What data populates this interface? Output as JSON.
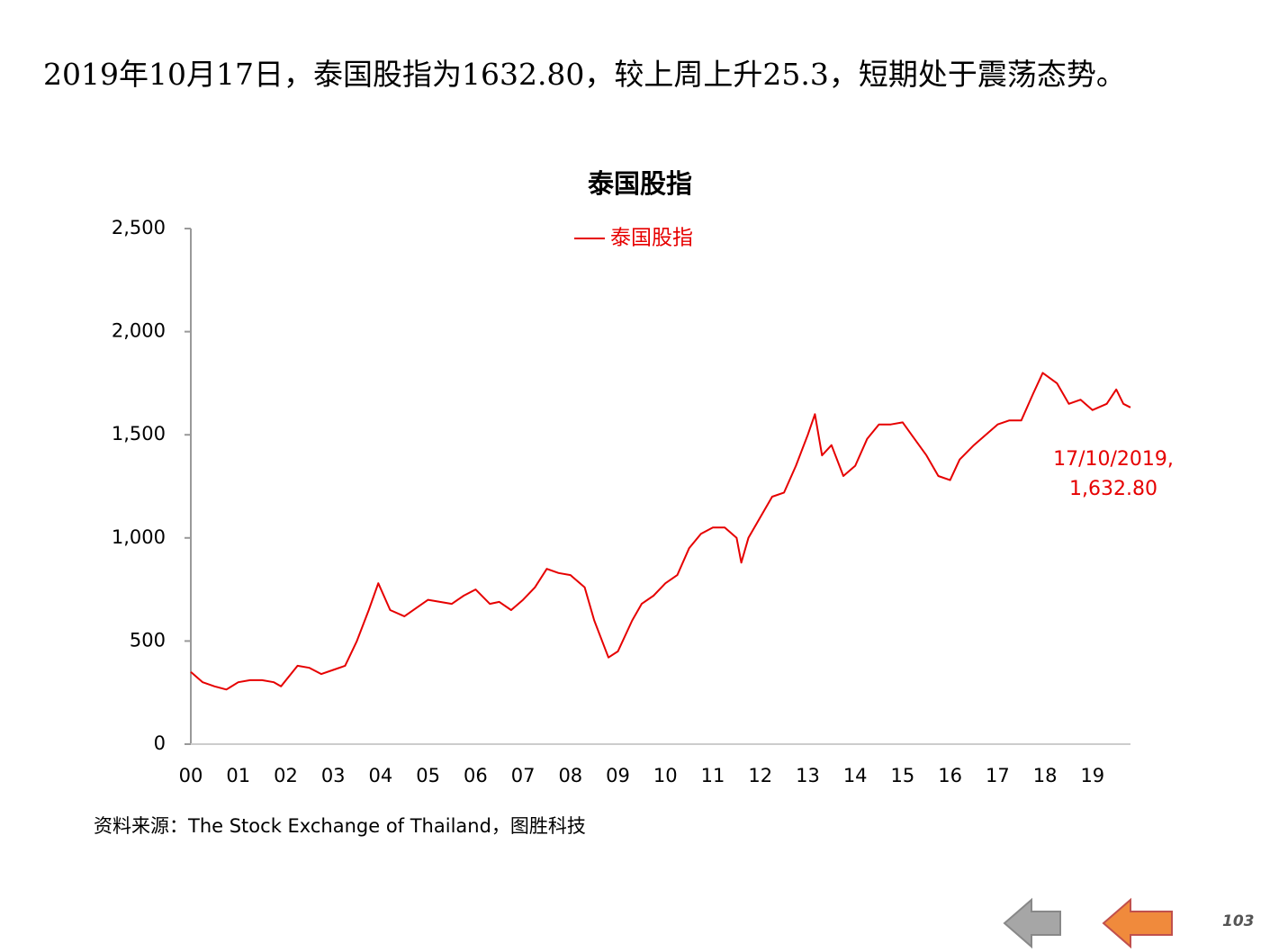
{
  "slide": {
    "heading": "2019年10月17日，泰国股指为1632.80，较上周上升25.3，短期处于震荡态势。",
    "source": "资料来源：The Stock Exchange of Thailand，图胜科技",
    "page_number": "103"
  },
  "chart_data": {
    "type": "line",
    "title": "泰国股指",
    "x": [
      0,
      0.25,
      0.5,
      0.75,
      1,
      1.25,
      1.5,
      1.75,
      1.9,
      2.25,
      2.5,
      2.75,
      3,
      3.25,
      3.5,
      3.75,
      3.95,
      4.2,
      4.5,
      4.75,
      5,
      5.25,
      5.5,
      5.75,
      6,
      6.3,
      6.5,
      6.75,
      7,
      7.25,
      7.5,
      7.75,
      8,
      8.3,
      8.5,
      8.8,
      9,
      9.3,
      9.5,
      9.75,
      10,
      10.25,
      10.5,
      10.75,
      11,
      11.25,
      11.5,
      11.6,
      11.75,
      12,
      12.25,
      12.5,
      12.75,
      13,
      13.15,
      13.3,
      13.5,
      13.75,
      14,
      14.25,
      14.5,
      14.75,
      15,
      15.25,
      15.5,
      15.75,
      16,
      16.2,
      16.5,
      16.75,
      17,
      17.25,
      17.5,
      17.75,
      17.95,
      18.25,
      18.5,
      18.75,
      19,
      19.3,
      19.5,
      19.65,
      19.8
    ],
    "series": [
      {
        "name": "泰国股指",
        "color": "#e60000",
        "values": [
          350,
          300,
          280,
          265,
          300,
          310,
          310,
          300,
          280,
          380,
          370,
          340,
          360,
          380,
          500,
          650,
          780,
          650,
          620,
          660,
          700,
          690,
          680,
          720,
          750,
          680,
          690,
          650,
          700,
          760,
          850,
          830,
          820,
          760,
          600,
          420,
          450,
          600,
          680,
          720,
          780,
          820,
          950,
          1020,
          1050,
          1050,
          1000,
          880,
          1000,
          1100,
          1200,
          1220,
          1350,
          1500,
          1600,
          1400,
          1450,
          1300,
          1350,
          1480,
          1550,
          1550,
          1560,
          1480,
          1400,
          1300,
          1280,
          1380,
          1450,
          1500,
          1550,
          1570,
          1570,
          1700,
          1800,
          1750,
          1650,
          1670,
          1620,
          1650,
          1720,
          1650,
          1632.8
        ]
      }
    ],
    "xlim": [
      0,
      19.8
    ],
    "xticks": [
      {
        "value": 0,
        "label": "00"
      },
      {
        "value": 1,
        "label": "01"
      },
      {
        "value": 2,
        "label": "02"
      },
      {
        "value": 3,
        "label": "03"
      },
      {
        "value": 4,
        "label": "04"
      },
      {
        "value": 5,
        "label": "05"
      },
      {
        "value": 6,
        "label": "06"
      },
      {
        "value": 7,
        "label": "07"
      },
      {
        "value": 8,
        "label": "08"
      },
      {
        "value": 9,
        "label": "09"
      },
      10,
      11,
      12,
      13,
      14,
      15,
      16,
      17,
      18,
      19
    ],
    "ylim": [
      0,
      2500
    ],
    "yticks": [
      0,
      {
        "value": 500,
        "label": "500"
      },
      {
        "value": 1000,
        "label": "1,000"
      },
      {
        "value": 1500,
        "label": "1,500"
      },
      {
        "value": 2000,
        "label": "2,000"
      },
      {
        "value": 2500,
        "label": "2,500"
      }
    ],
    "legend": "top",
    "annotation": [
      "17/10/2019,",
      "1,632.80"
    ]
  }
}
